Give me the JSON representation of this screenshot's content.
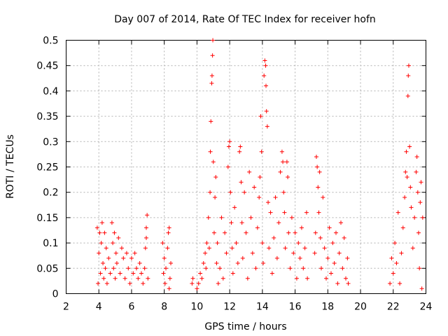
{
  "chart_data": {
    "type": "scatter",
    "title": "Day 007 of 2014, Rate Of TEC Index for receiver hofn",
    "xlabel": "GPS time / hours",
    "ylabel": "ROTI / TECUs",
    "xlim": [
      2,
      24
    ],
    "ylim": [
      0,
      0.5
    ],
    "xticks": [
      "2",
      "4",
      "6",
      "8",
      "10",
      "12",
      "14",
      "16",
      "18",
      "20",
      "22",
      "24"
    ],
    "yticks": [
      "0",
      "0.05",
      "0.1",
      "0.15",
      "0.2",
      "0.25",
      "0.3",
      "0.35",
      "0.4",
      "0.45",
      "0.5"
    ],
    "grid": true,
    "marker": "+",
    "color": "#ff0000",
    "series": [
      {
        "values": [
          [
            3.9,
            0.13
          ],
          [
            3.95,
            0.02
          ],
          [
            4.0,
            0.08
          ],
          [
            4.05,
            0.12
          ],
          [
            4.1,
            0.04
          ],
          [
            4.15,
            0.1
          ],
          [
            4.2,
            0.14
          ],
          [
            4.25,
            0.06
          ],
          [
            4.3,
            0.03
          ],
          [
            4.35,
            0.12
          ],
          [
            4.4,
            0.05
          ],
          [
            4.45,
            0.09
          ],
          [
            4.5,
            0.02
          ],
          [
            4.6,
            0.07
          ],
          [
            4.7,
            0.04
          ],
          [
            4.8,
            0.14
          ],
          [
            4.85,
            0.1
          ],
          [
            4.9,
            0.05
          ],
          [
            4.95,
            0.12
          ],
          [
            5.0,
            0.03
          ],
          [
            5.05,
            0.08
          ],
          [
            5.1,
            0.06
          ],
          [
            5.2,
            0.11
          ],
          [
            5.3,
            0.04
          ],
          [
            5.4,
            0.09
          ],
          [
            5.5,
            0.07
          ],
          [
            5.6,
            0.03
          ],
          [
            5.7,
            0.08
          ],
          [
            5.8,
            0.05
          ],
          [
            5.9,
            0.02
          ],
          [
            6.0,
            0.07
          ],
          [
            6.1,
            0.04
          ],
          [
            6.2,
            0.08
          ],
          [
            6.3,
            0.05
          ],
          [
            6.4,
            0.03
          ],
          [
            6.5,
            0.06
          ],
          [
            6.6,
            0.04
          ],
          [
            6.7,
            0.02
          ],
          [
            6.8,
            0.05
          ],
          [
            6.9,
            0.11
          ],
          [
            6.95,
            0.155
          ],
          [
            6.9,
            0.13
          ],
          [
            6.85,
            0.09
          ],
          [
            7.0,
            0.03
          ],
          [
            7.9,
            0.1
          ],
          [
            7.95,
            0.04
          ],
          [
            8.0,
            0.07
          ],
          [
            8.05,
            0.02
          ],
          [
            8.1,
            0.05
          ],
          [
            8.2,
            0.09
          ],
          [
            8.25,
            0.12
          ],
          [
            8.3,
            0.13
          ],
          [
            8.35,
            0.03
          ],
          [
            8.4,
            0.06
          ],
          [
            8.3,
            0.01
          ],
          [
            9.7,
            0.02
          ],
          [
            9.75,
            0.03
          ],
          [
            10.0,
            0.01
          ],
          [
            10.1,
            0.02
          ],
          [
            10.2,
            0.04
          ],
          [
            10.3,
            0.03
          ],
          [
            10.4,
            0.06
          ],
          [
            10.5,
            0.08
          ],
          [
            10.55,
            0.05
          ],
          [
            10.6,
            0.1
          ],
          [
            10.7,
            0.15
          ],
          [
            10.75,
            0.09
          ],
          [
            10.8,
            0.2
          ],
          [
            10.82,
            0.28
          ],
          [
            10.85,
            0.34
          ],
          [
            10.9,
            0.415
          ],
          [
            10.92,
            0.43
          ],
          [
            10.95,
            0.47
          ],
          [
            10.97,
            0.5
          ],
          [
            11.0,
            0.26
          ],
          [
            11.05,
            0.12
          ],
          [
            11.1,
            0.19
          ],
          [
            11.15,
            0.23
          ],
          [
            11.2,
            0.06
          ],
          [
            11.25,
            0.1
          ],
          [
            11.3,
            0.02
          ],
          [
            11.4,
            0.05
          ],
          [
            11.5,
            0.15
          ],
          [
            11.6,
            0.03
          ],
          [
            11.7,
            0.12
          ],
          [
            11.8,
            0.08
          ],
          [
            11.9,
            0.25
          ],
          [
            11.95,
            0.29
          ],
          [
            12.0,
            0.3
          ],
          [
            12.05,
            0.2
          ],
          [
            12.1,
            0.14
          ],
          [
            12.15,
            0.09
          ],
          [
            12.2,
            0.04
          ],
          [
            12.3,
            0.17
          ],
          [
            12.4,
            0.1
          ],
          [
            12.5,
            0.06
          ],
          [
            12.6,
            0.28
          ],
          [
            12.65,
            0.29
          ],
          [
            12.7,
            0.22
          ],
          [
            12.75,
            0.14
          ],
          [
            12.8,
            0.07
          ],
          [
            12.9,
            0.2
          ],
          [
            13.0,
            0.12
          ],
          [
            13.1,
            0.03
          ],
          [
            13.2,
            0.24
          ],
          [
            13.3,
            0.15
          ],
          [
            13.4,
            0.08
          ],
          [
            13.5,
            0.21
          ],
          [
            13.6,
            0.05
          ],
          [
            13.7,
            0.13
          ],
          [
            13.8,
            0.19
          ],
          [
            13.85,
            0.23
          ],
          [
            13.9,
            0.35
          ],
          [
            13.95,
            0.28
          ],
          [
            14.0,
            0.1
          ],
          [
            14.05,
            0.06
          ],
          [
            14.1,
            0.43
          ],
          [
            14.15,
            0.46
          ],
          [
            14.2,
            0.45
          ],
          [
            14.22,
            0.41
          ],
          [
            14.25,
            0.36
          ],
          [
            14.3,
            0.33
          ],
          [
            14.35,
            0.18
          ],
          [
            14.4,
            0.09
          ],
          [
            14.5,
            0.16
          ],
          [
            14.6,
            0.04
          ],
          [
            14.7,
            0.11
          ],
          [
            14.8,
            0.19
          ],
          [
            14.9,
            0.07
          ],
          [
            15.0,
            0.14
          ],
          [
            15.1,
            0.24
          ],
          [
            15.2,
            0.28
          ],
          [
            15.25,
            0.26
          ],
          [
            15.3,
            0.2
          ],
          [
            15.35,
            0.16
          ],
          [
            15.4,
            0.09
          ],
          [
            15.5,
            0.26
          ],
          [
            15.55,
            0.23
          ],
          [
            15.6,
            0.12
          ],
          [
            15.7,
            0.05
          ],
          [
            15.8,
            0.15
          ],
          [
            15.9,
            0.08
          ],
          [
            16.0,
            0.12
          ],
          [
            16.1,
            0.03
          ],
          [
            16.2,
            0.1
          ],
          [
            16.3,
            0.07
          ],
          [
            16.4,
            0.13
          ],
          [
            16.5,
            0.05
          ],
          [
            16.6,
            0.09
          ],
          [
            16.7,
            0.16
          ],
          [
            16.75,
            0.03
          ],
          [
            17.2,
            0.08
          ],
          [
            17.25,
            0.12
          ],
          [
            17.3,
            0.27
          ],
          [
            17.35,
            0.25
          ],
          [
            17.4,
            0.21
          ],
          [
            17.45,
            0.16
          ],
          [
            17.5,
            0.24
          ],
          [
            17.55,
            0.11
          ],
          [
            17.6,
            0.05
          ],
          [
            17.7,
            0.19
          ],
          [
            17.8,
            0.09
          ],
          [
            17.9,
            0.03
          ],
          [
            18.0,
            0.07
          ],
          [
            18.1,
            0.13
          ],
          [
            18.2,
            0.04
          ],
          [
            18.3,
            0.1
          ],
          [
            18.4,
            0.06
          ],
          [
            18.5,
            0.12
          ],
          [
            18.6,
            0.02
          ],
          [
            18.7,
            0.08
          ],
          [
            18.8,
            0.14
          ],
          [
            18.9,
            0.05
          ],
          [
            19.0,
            0.11
          ],
          [
            19.1,
            0.03
          ],
          [
            19.2,
            0.07
          ],
          [
            19.25,
            0.02
          ],
          [
            21.8,
            0.02
          ],
          [
            21.9,
            0.07
          ],
          [
            22.0,
            0.04
          ],
          [
            22.1,
            0.1
          ],
          [
            22.2,
            0.06
          ],
          [
            22.3,
            0.16
          ],
          [
            22.4,
            0.02
          ],
          [
            22.5,
            0.08
          ],
          [
            22.6,
            0.13
          ],
          [
            22.7,
            0.19
          ],
          [
            22.75,
            0.24
          ],
          [
            22.8,
            0.28
          ],
          [
            22.85,
            0.23
          ],
          [
            22.9,
            0.39
          ],
          [
            22.92,
            0.43
          ],
          [
            22.95,
            0.45
          ],
          [
            23.0,
            0.29
          ],
          [
            23.05,
            0.21
          ],
          [
            23.1,
            0.17
          ],
          [
            23.2,
            0.09
          ],
          [
            23.3,
            0.15
          ],
          [
            23.4,
            0.24
          ],
          [
            23.45,
            0.27
          ],
          [
            23.5,
            0.2
          ],
          [
            23.55,
            0.12
          ],
          [
            23.6,
            0.05
          ],
          [
            23.65,
            0.18
          ],
          [
            23.7,
            0.22
          ],
          [
            23.75,
            0.01
          ],
          [
            23.8,
            0.15
          ]
        ]
      }
    ]
  }
}
